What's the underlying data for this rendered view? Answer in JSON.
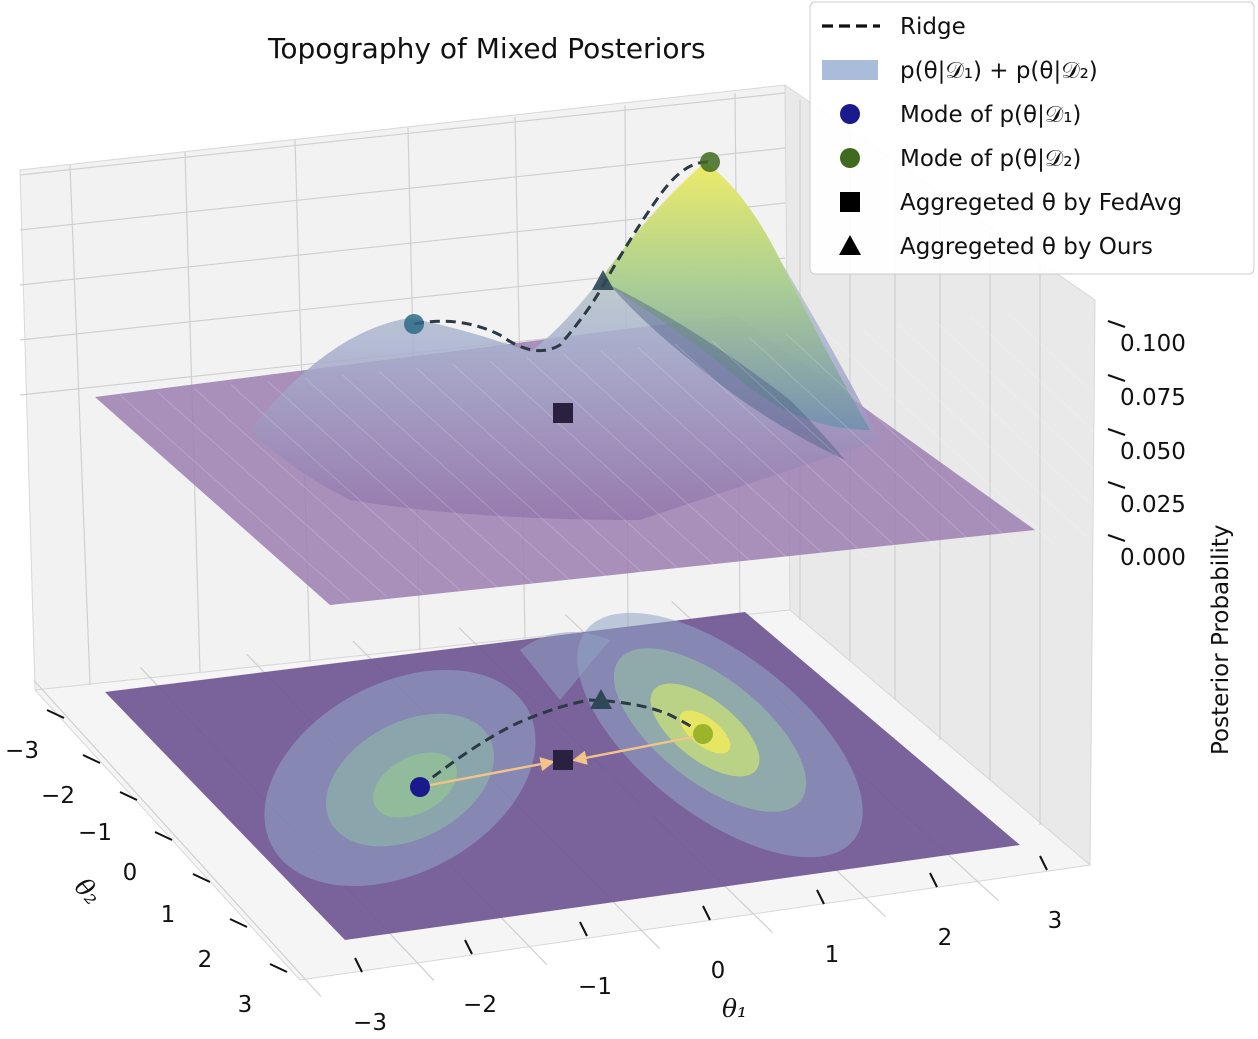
{
  "chart_data": {
    "type": "surface3d",
    "title": "Topography of Mixed Posteriors",
    "xlabel": "θ₁",
    "ylabel": "θ₂",
    "zlabel": "Posterior Probability",
    "x_ticks": [
      "−3",
      "−2",
      "−1",
      "0",
      "1",
      "2",
      "3"
    ],
    "y_ticks": [
      "−3",
      "−2",
      "−1",
      "0",
      "1",
      "2",
      "3"
    ],
    "z_ticks": [
      "0.000",
      "0.025",
      "0.050",
      "0.075",
      "0.100"
    ],
    "xlim": [
      -3,
      3
    ],
    "ylim": [
      -3,
      3
    ],
    "zlim": [
      0,
      0.11
    ],
    "grid": true,
    "legend_position": "top-right",
    "legend": [
      {
        "label": "Ridge",
        "marker": "dashed-line"
      },
      {
        "label": "p(θ|𝒟₁) + p(θ|𝒟₂)",
        "marker": "patch"
      },
      {
        "label": "Mode of p(θ|𝒟₁)",
        "marker": "circle"
      },
      {
        "label": "Mode of p(θ|𝒟₂)",
        "marker": "circle"
      },
      {
        "label": "Aggregeted θ by FedAvg",
        "marker": "square"
      },
      {
        "label": "Aggregeted θ by Ours",
        "marker": "triangle"
      }
    ],
    "components": [
      {
        "name": "p(θ|𝒟₁)",
        "mean": [
          -1.5,
          1.0
        ],
        "peak": 0.055
      },
      {
        "name": "p(θ|𝒟₂)",
        "mean": [
          1.0,
          -1.0
        ],
        "peak": 0.1
      }
    ],
    "points": {
      "mode1": {
        "theta1": -1.5,
        "theta2": 1.0,
        "z": 0.055
      },
      "mode2": {
        "theta1": 1.0,
        "theta2": -1.0,
        "z": 0.1
      },
      "fedavg": {
        "theta1": -0.25,
        "theta2": 0.0,
        "z": 0.035
      },
      "ours": {
        "theta1": 0.1,
        "theta2": -0.55,
        "z": 0.068
      }
    },
    "colors": {
      "surface_low": "#8a6aa0",
      "surface_high": "#e6e45a",
      "floor": "#7a5c96",
      "mode1": "#1a1a8c",
      "mode2": "#3f6b1f",
      "square": "#2a2040",
      "triangle": "#2f4858",
      "arrow": "#f2c48a",
      "ridge": "#2b3a44",
      "legend_patch": "#a9bcd9"
    }
  }
}
